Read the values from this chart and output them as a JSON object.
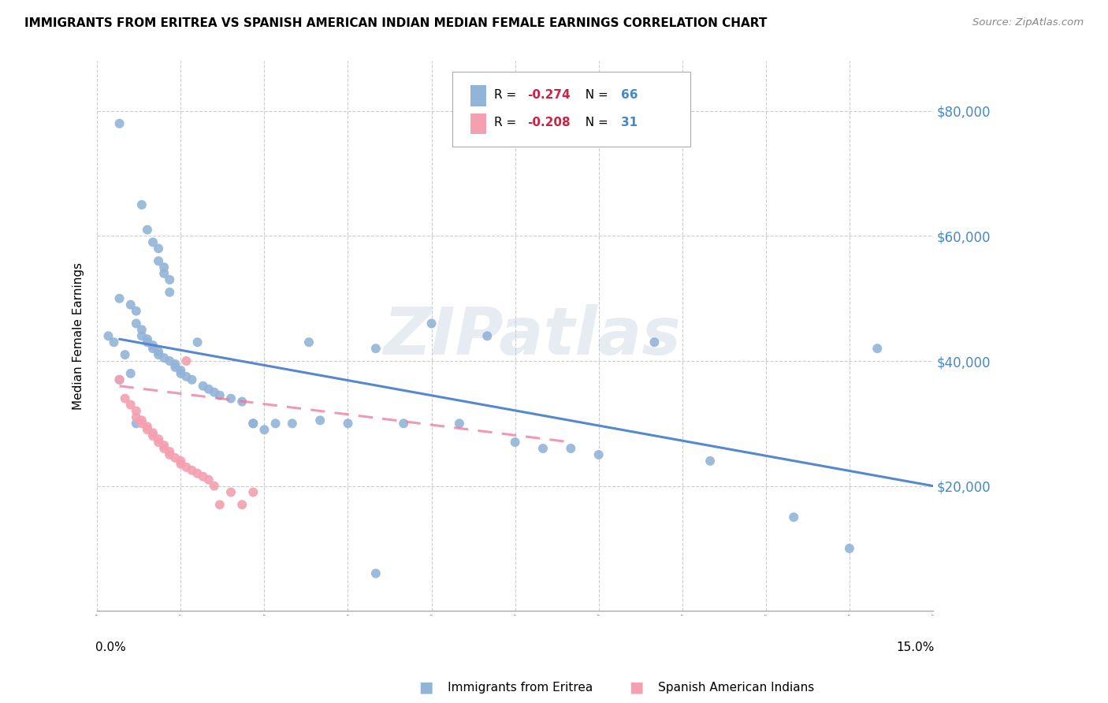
{
  "title": "IMMIGRANTS FROM ERITREA VS SPANISH AMERICAN INDIAN MEDIAN FEMALE EARNINGS CORRELATION CHART",
  "source": "Source: ZipAtlas.com",
  "ylabel": "Median Female Earnings",
  "yticks": [
    0,
    20000,
    40000,
    60000,
    80000
  ],
  "xlim": [
    0.0,
    0.15
  ],
  "ylim": [
    0,
    88000
  ],
  "legend_blue_r": "-0.274",
  "legend_blue_n": "66",
  "legend_pink_r": "-0.208",
  "legend_pink_n": "31",
  "blue_color": "#92B4D8",
  "pink_color": "#F4A0B0",
  "line_blue": "#5588CC",
  "line_pink": "#EE7799",
  "watermark_text": "ZIPatlas",
  "blue_x": [
    0.004,
    0.008,
    0.009,
    0.01,
    0.011,
    0.011,
    0.012,
    0.012,
    0.013,
    0.013,
    0.004,
    0.006,
    0.007,
    0.007,
    0.008,
    0.008,
    0.009,
    0.009,
    0.01,
    0.01,
    0.011,
    0.011,
    0.012,
    0.013,
    0.014,
    0.014,
    0.015,
    0.015,
    0.016,
    0.017,
    0.018,
    0.019,
    0.02,
    0.021,
    0.022,
    0.024,
    0.026,
    0.028,
    0.03,
    0.032,
    0.035,
    0.038,
    0.04,
    0.045,
    0.05,
    0.055,
    0.06,
    0.065,
    0.07,
    0.075,
    0.08,
    0.085,
    0.09,
    0.1,
    0.11,
    0.125,
    0.135,
    0.14,
    0.002,
    0.003,
    0.004,
    0.005,
    0.006,
    0.007,
    0.028,
    0.05
  ],
  "blue_y": [
    78000,
    65000,
    61000,
    59000,
    58000,
    56000,
    55000,
    54000,
    53000,
    51000,
    50000,
    49000,
    48000,
    46000,
    45000,
    44000,
    43500,
    43000,
    42500,
    42000,
    41500,
    41000,
    40500,
    40000,
    39500,
    39000,
    38500,
    38000,
    37500,
    37000,
    43000,
    36000,
    35500,
    35000,
    34500,
    34000,
    33500,
    30000,
    29000,
    30000,
    30000,
    43000,
    30500,
    30000,
    42000,
    30000,
    46000,
    30000,
    44000,
    27000,
    26000,
    26000,
    25000,
    43000,
    24000,
    15000,
    10000,
    42000,
    44000,
    43000,
    37000,
    41000,
    38000,
    30000,
    30000,
    6000
  ],
  "pink_x": [
    0.004,
    0.005,
    0.006,
    0.007,
    0.007,
    0.008,
    0.008,
    0.009,
    0.009,
    0.01,
    0.01,
    0.011,
    0.011,
    0.012,
    0.012,
    0.013,
    0.013,
    0.014,
    0.015,
    0.015,
    0.016,
    0.017,
    0.018,
    0.019,
    0.02,
    0.021,
    0.022,
    0.024,
    0.026,
    0.028,
    0.016
  ],
  "pink_y": [
    37000,
    34000,
    33000,
    32000,
    31000,
    30500,
    30000,
    29500,
    29000,
    28500,
    28000,
    27500,
    27000,
    26500,
    26000,
    25500,
    25000,
    24500,
    24000,
    23500,
    23000,
    22500,
    22000,
    21500,
    21000,
    20000,
    17000,
    19000,
    17000,
    19000,
    40000
  ],
  "blue_line_x": [
    0.004,
    0.15
  ],
  "blue_line_y": [
    43500,
    20000
  ],
  "pink_line_x": [
    0.004,
    0.085
  ],
  "pink_line_y": [
    36000,
    27000
  ]
}
